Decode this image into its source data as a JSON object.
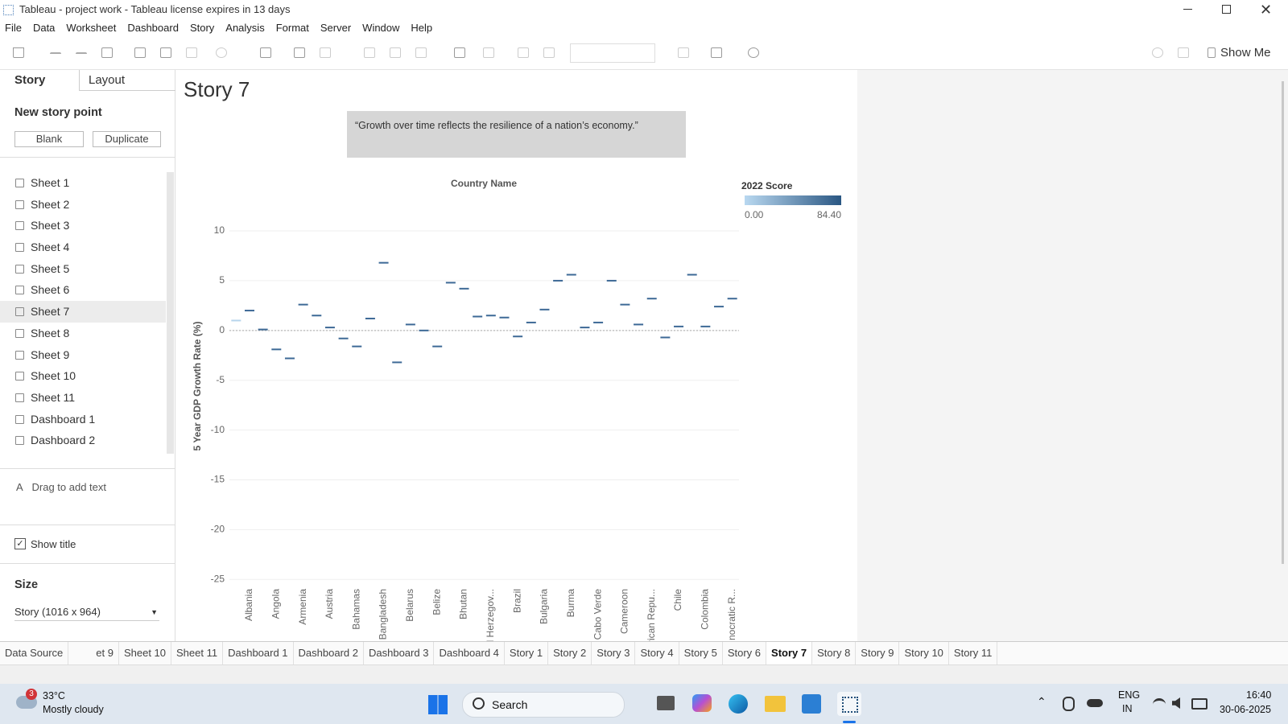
{
  "window": {
    "title": "Tableau - project work - Tableau license expires in 13 days"
  },
  "menu": [
    "File",
    "Data",
    "Worksheet",
    "Dashboard",
    "Story",
    "Analysis",
    "Format",
    "Server",
    "Window",
    "Help"
  ],
  "toolbar": {
    "show_me": "Show Me"
  },
  "side_panel": {
    "tabs": [
      "Story",
      "Layout"
    ],
    "new_story_point": "New story point",
    "buttons": [
      "Blank",
      "Duplicate"
    ],
    "items": [
      "Sheet 1",
      "Sheet 2",
      "Sheet 3",
      "Sheet 4",
      "Sheet 5",
      "Sheet 6",
      "Sheet 7",
      "Sheet 8",
      "Sheet 9",
      "Sheet 10",
      "Sheet 11",
      "Dashboard 1",
      "Dashboard 2"
    ],
    "drag_text": "Drag to add text",
    "show_title": "Show title",
    "size_heading": "Size",
    "size_value": "Story (1016 x 964)"
  },
  "story": {
    "title": "Story 7",
    "caption": "“Growth over time reflects the resilience of a nation’s economy.”"
  },
  "chart_data": {
    "type": "line-mark",
    "header": "Country Name",
    "y_label": "5 Year GDP Growth Rate (%)",
    "categories": [
      null,
      "Albania",
      null,
      "Angola",
      null,
      "Armenia",
      null,
      "Austria",
      null,
      "Bahamas",
      null,
      "Bangladesh",
      null,
      "Belarus",
      null,
      "Belize",
      null,
      "Bhutan",
      null,
      "d Herzegov...",
      null,
      "Brazil",
      null,
      "Bulgaria",
      null,
      "Burma",
      null,
      "Cabo Verde",
      null,
      "Cameroon",
      null,
      "rican Repu...",
      null,
      "Chile",
      null,
      "Colombia",
      null,
      "nocratic R..."
    ],
    "values": [
      1.0,
      2.0,
      0.1,
      -1.9,
      -2.8,
      2.6,
      1.5,
      0.3,
      -0.8,
      -1.6,
      1.2,
      6.8,
      -3.2,
      0.6,
      0.0,
      -1.6,
      4.8,
      4.2,
      1.4,
      1.5,
      1.3,
      -0.6,
      0.8,
      2.1,
      5.0,
      5.6,
      0.3,
      0.8,
      5.0,
      2.6,
      0.6,
      3.2,
      -0.7,
      0.4,
      5.6,
      0.4,
      2.4,
      3.2
    ],
    "colors": [
      "#b7d4ec",
      "#3d6996",
      "#3d6996",
      "#3d6996",
      "#3d6996",
      "#3d6996",
      "#3d6996",
      "#3d6996",
      "#3d6996",
      "#3d6996",
      "#3d6996",
      "#3d6996",
      "#3d6996",
      "#3d6996",
      "#3d6996",
      "#3d6996",
      "#3d6996",
      "#3d6996",
      "#3d6996",
      "#3d6996",
      "#3d6996",
      "#3d6996",
      "#3d6996",
      "#3d6996",
      "#3d6996",
      "#3d6996",
      "#3d6996",
      "#3d6996",
      "#3d6996",
      "#3d6996",
      "#3d6996",
      "#3d6996",
      "#3d6996",
      "#3d6996",
      "#3d6996",
      "#3d6996",
      "#3d6996",
      "#3d6996"
    ],
    "ylim": [
      -25.3,
      13.8
    ],
    "yticks": [
      10,
      5,
      0,
      -5,
      -10,
      -15,
      -20,
      -25
    ],
    "grid": true,
    "legend": {
      "title": "2022 Score",
      "min": {
        "value": 0,
        "label": "0.00"
      },
      "max": {
        "value": 84.4,
        "label": "84.40"
      },
      "colors": [
        "#b9d8f0",
        "#2a5783"
      ]
    }
  },
  "tabs": [
    "Data Source",
    "et 9",
    "Sheet 10",
    "Sheet 11",
    "Dashboard 1",
    "Dashboard 2",
    "Dashboard 3",
    "Dashboard 4",
    "Story 1",
    "Story 2",
    "Story 3",
    "Story 4",
    "Story 5",
    "Story 6",
    "Story 7",
    "Story 8",
    "Story 9",
    "Story 10",
    "Story 11"
  ],
  "taskbar": {
    "weather_badge": "3",
    "temperature": "33°C",
    "weather": "Mostly cloudy",
    "search": "Search",
    "language": "ENG",
    "region": "IN",
    "time": "16:40",
    "date": "30-06-2025"
  }
}
